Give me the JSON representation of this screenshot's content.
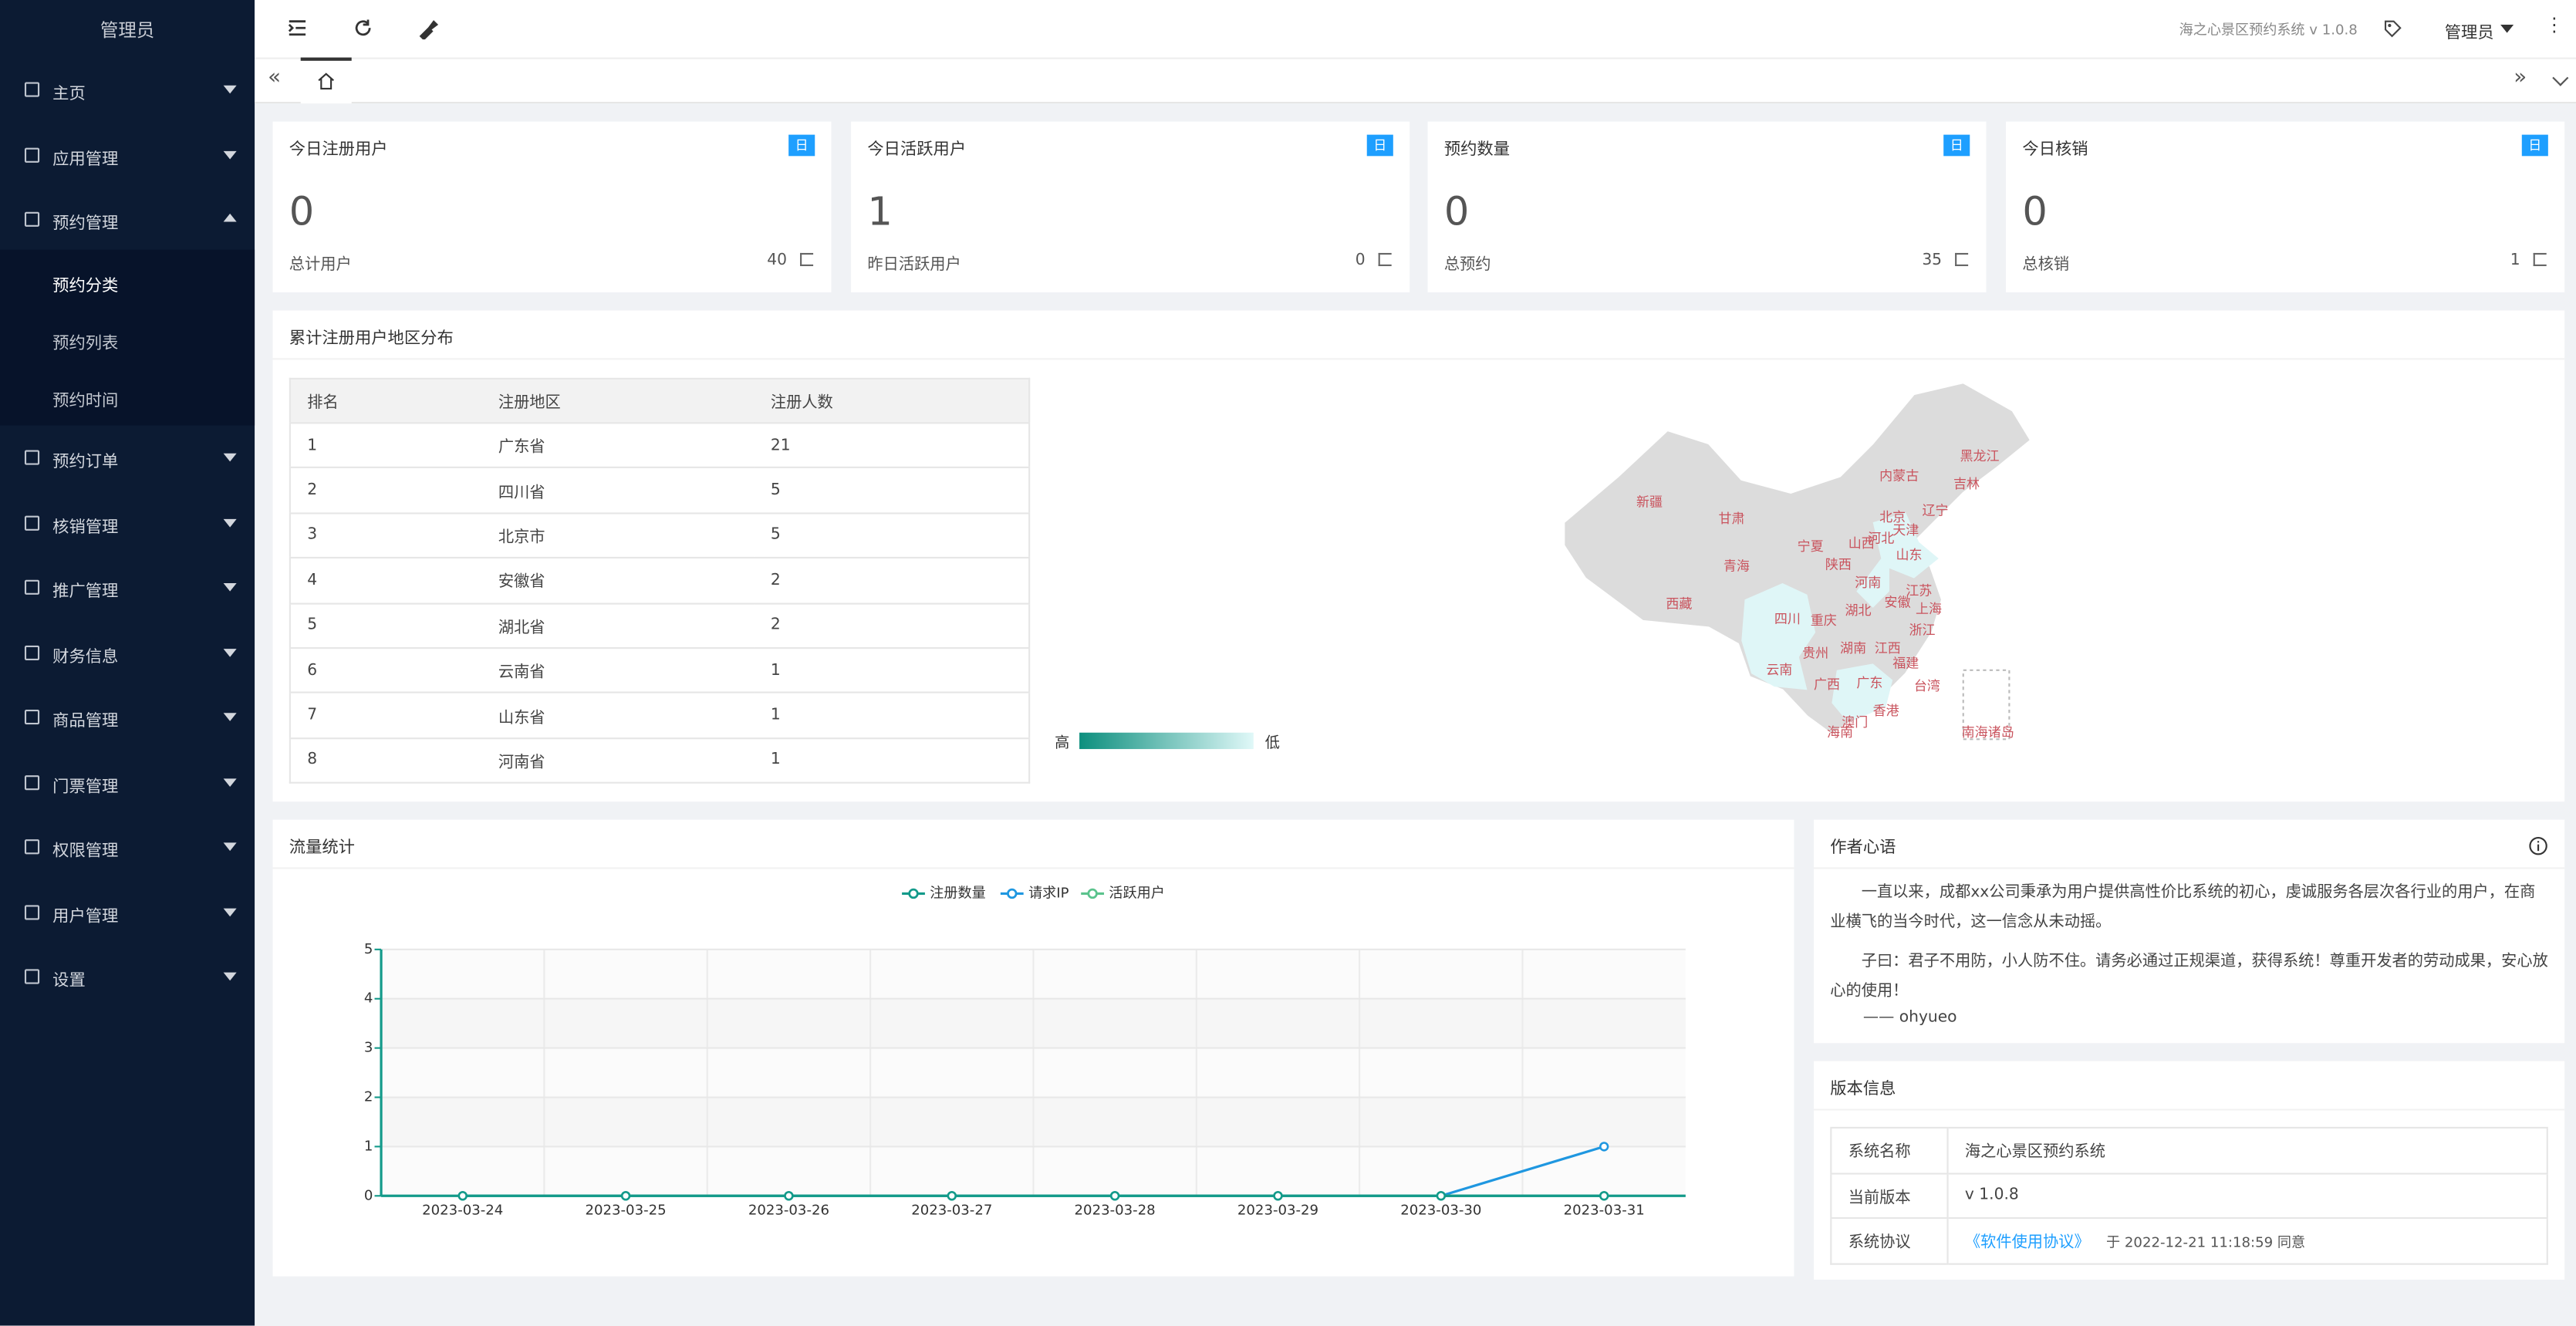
{
  "sidebar": {
    "title": "管理员",
    "menu": [
      "主页",
      "应用管理",
      "预约管理",
      "预约订单",
      "核销管理",
      "推广管理",
      "财务信息",
      "商品管理",
      "门票管理",
      "权限管理",
      "用户管理",
      "设置"
    ],
    "submenu": [
      "预约分类",
      "预约列表",
      "预约时间"
    ]
  },
  "header": {
    "app": "海之心景区预约系统 v 1.0.8",
    "user": "管理员"
  },
  "cards": [
    {
      "title": "今日注册用户",
      "badge": "日",
      "value": 0,
      "sub_label": "总计用户",
      "sub_value": 40
    },
    {
      "title": "今日活跃用户",
      "badge": "日",
      "value": 1,
      "sub_label": "昨日活跃用户",
      "sub_value": 0
    },
    {
      "title": "预约数量",
      "badge": "日",
      "value": 0,
      "sub_label": "总预约",
      "sub_value": 35
    },
    {
      "title": "今日核销",
      "badge": "日",
      "value": 0,
      "sub_label": "总核销",
      "sub_value": 1
    }
  ],
  "region": {
    "title": "累计注册用户地区分布",
    "table": {
      "headers": [
        "排名",
        "注册地区",
        "注册人数"
      ],
      "rows": [
        [
          1,
          "广东省",
          21
        ],
        [
          2,
          "四川省",
          5
        ],
        [
          3,
          "北京市",
          5
        ],
        [
          4,
          "安徽省",
          2
        ],
        [
          5,
          "湖北省",
          2
        ],
        [
          6,
          "云南省",
          1
        ],
        [
          7,
          "山东省",
          1
        ],
        [
          8,
          "河南省",
          1
        ]
      ]
    },
    "legend_high": "高",
    "legend_low": "低",
    "map_labels": [
      "黑龙江",
      "吉林",
      "内蒙古",
      "辽宁",
      "新疆",
      "甘肃",
      "北京",
      "天津",
      "宁夏",
      "山西",
      "河北",
      "陕西",
      "山东",
      "青海",
      "河南",
      "江苏",
      "安徽",
      "上海",
      "西藏",
      "四川",
      "湖北",
      "重庆",
      "浙江",
      "湖南",
      "江西",
      "贵州",
      "云南",
      "福建",
      "广西",
      "广东",
      "台湾",
      "香港",
      "澳门",
      "海南",
      "南海诸岛"
    ]
  },
  "chart_data": {
    "type": "line",
    "title": "流量统计",
    "categories": [
      "2023-03-24",
      "2023-03-25",
      "2023-03-26",
      "2023-03-27",
      "2023-03-28",
      "2023-03-29",
      "2023-03-30",
      "2023-03-31"
    ],
    "series": [
      {
        "name": "注册数量",
        "color": "#139a8a",
        "values": [
          0,
          0,
          0,
          0,
          0,
          0,
          0,
          0
        ]
      },
      {
        "name": "请求IP",
        "color": "#1f97e0",
        "values": [
          0,
          0,
          0,
          0,
          0,
          0,
          0,
          1
        ]
      },
      {
        "name": "活跃用户",
        "color": "#5bc38d",
        "values": [
          0,
          0,
          0,
          0,
          0,
          0,
          0,
          0
        ]
      }
    ],
    "ylim": [
      0,
      5
    ],
    "yticks": [
      0,
      1,
      2,
      3,
      4,
      5
    ],
    "grid": true
  },
  "author": {
    "title": "作者心语",
    "paragraphs": [
      "一直以来，成都xx公司秉承为用户提供高性价比系统的初心，虔诚服务各层次各行业的用户，在商业横飞的当今时代，这一信念从未动摇。",
      "子曰：君子不用防，小人防不住。请务必通过正规渠道，获得系统！尊重开发者的劳动成果，安心放心的使用！"
    ],
    "signature": "—— ohyueo"
  },
  "version": {
    "title": "版本信息",
    "rows": [
      {
        "label": "系统名称",
        "value": "海之心景区预约系统"
      },
      {
        "label": "当前版本",
        "value": "v 1.0.8"
      },
      {
        "label": "系统协议",
        "link": "《软件使用协议》",
        "note": "于 2022-12-21 11:18:59 同意"
      }
    ]
  }
}
